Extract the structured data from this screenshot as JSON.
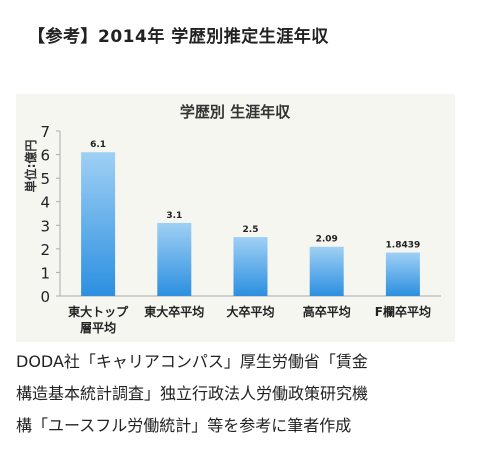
{
  "heading": "【参考】2014年 学歴別推定生涯年収",
  "chart_data": {
    "type": "bar",
    "title": "学歴別 生涯年収",
    "ylabel": "単位:億円",
    "xlabel": "",
    "ylim": [
      0,
      7
    ],
    "yticks": [
      0,
      1,
      2,
      3,
      4,
      5,
      6,
      7
    ],
    "categories": [
      [
        "東大トップ",
        "層平均"
      ],
      [
        "東大卒平均"
      ],
      [
        "大卒平均"
      ],
      [
        "高卒平均"
      ],
      [
        "F欄卒平均"
      ]
    ],
    "values": [
      6.1,
      3.1,
      2.5,
      2.09,
      1.8439
    ],
    "data_labels": [
      "6.1",
      "3.1",
      "2.5",
      "2.09",
      "1.8439"
    ],
    "grid": false,
    "legend": "none",
    "colors": {
      "bar_top": "#9fd0f4",
      "bar_bottom": "#2c8fe0",
      "axis": "#aaaaaa",
      "panel": "#f6f6f1"
    }
  },
  "caption": [
    "DODA社「キャリアコンパス」厚生労働省「賃金",
    "構造基本統計調査」独立行政法人労働政策研究機",
    "構「ユースフル労働統計」等を参考に筆者作成"
  ]
}
